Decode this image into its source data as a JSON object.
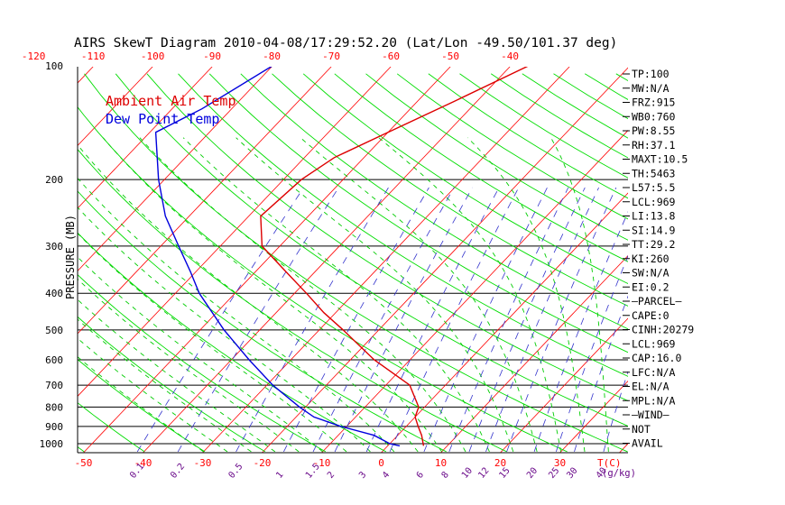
{
  "chart_data": {
    "type": "line",
    "title": "AIRS SkewT Diagram 2010-04-08/17:29:52.20 (Lat/Lon -49.50/101.37 deg)",
    "ylabel": "PRESSURE (MB)",
    "pressure_ticks": [
      "100",
      "200",
      "300",
      "400",
      "500",
      "600",
      "700",
      "800",
      "900",
      "1000"
    ],
    "top_temp_ticks": [
      "-120",
      "-110",
      "-100",
      "-90",
      "-80",
      "-70",
      "-60",
      "-50",
      "-40"
    ],
    "bottom_temp_ticks": [
      "-50",
      "-40",
      "-30",
      "-20",
      "-10",
      "0",
      "10",
      "20",
      "30"
    ],
    "bottom_temp_unit": "T(C)",
    "mixing_ratio_ticks": [
      "0.1",
      "0.2",
      "0.5",
      "1",
      "1.5",
      "2",
      "3",
      "4",
      "6",
      "8",
      "10",
      "12",
      "15",
      "20",
      "25",
      "30",
      "40"
    ],
    "mixing_ratio_unit": "(g/kg)",
    "series": [
      {
        "name": "Ambient Air Temp",
        "color": "#dd0000",
        "points": [
          {
            "p": 100,
            "t": -37
          },
          {
            "p": 125,
            "t": -44
          },
          {
            "p": 150,
            "t": -50
          },
          {
            "p": 175,
            "t": -55
          },
          {
            "p": 200,
            "t": -57
          },
          {
            "p": 250,
            "t": -58
          },
          {
            "p": 300,
            "t": -53
          },
          {
            "p": 350,
            "t": -45
          },
          {
            "p": 400,
            "t": -38
          },
          {
            "p": 450,
            "t": -32
          },
          {
            "p": 500,
            "t": -26
          },
          {
            "p": 600,
            "t": -16
          },
          {
            "p": 700,
            "t": -6
          },
          {
            "p": 800,
            "t": -1
          },
          {
            "p": 850,
            "t": 0
          },
          {
            "p": 900,
            "t": 2
          },
          {
            "p": 950,
            "t": 4
          },
          {
            "p": 1013,
            "t": 6
          }
        ]
      },
      {
        "name": "Dew Point Temp",
        "color": "#0000dd",
        "points": [
          {
            "p": 100,
            "t": -80
          },
          {
            "p": 130,
            "t": -85
          },
          {
            "p": 150,
            "t": -89
          },
          {
            "p": 200,
            "t": -81
          },
          {
            "p": 250,
            "t": -74
          },
          {
            "p": 300,
            "t": -67
          },
          {
            "p": 350,
            "t": -61
          },
          {
            "p": 400,
            "t": -56
          },
          {
            "p": 500,
            "t": -46
          },
          {
            "p": 600,
            "t": -37
          },
          {
            "p": 700,
            "t": -29
          },
          {
            "p": 800,
            "t": -21
          },
          {
            "p": 850,
            "t": -17
          },
          {
            "p": 900,
            "t": -11
          },
          {
            "p": 950,
            "t": -4
          },
          {
            "p": 1000,
            "t": 0
          },
          {
            "p": 1013,
            "t": 2
          }
        ]
      }
    ],
    "legend": [
      "Ambient Air Temp",
      "Dew Point Temp"
    ],
    "grid": true
  },
  "indices": [
    "TP:100",
    "MW:N/A",
    "FRZ:915",
    "WB0:760",
    "PW:8.55",
    "RH:37.1",
    "MAXT:10.5",
    "TH:5463",
    "L57:5.5",
    "LCL:969",
    "LI:13.8",
    "SI:14.9",
    "TT:29.2",
    "KI:260",
    "SW:N/A",
    "EI:0.2",
    "—PARCEL—",
    "CAPE:0",
    "CINH:20279",
    "LCL:969",
    "CAP:16.0",
    "LFC:N/A",
    "EL:N/A",
    "MPL:N/A",
    "—WIND—",
    "NOT",
    "AVAIL"
  ],
  "colors": {
    "isotherm": "#ff0000",
    "dry_adiabat": "#00dd00",
    "moist_adiabat": "#00cc00",
    "mixing_ratio": "#3333cc",
    "axis_text": "#000000",
    "temp_label": "#ff0000",
    "mix_label": "#6a0a8a"
  }
}
